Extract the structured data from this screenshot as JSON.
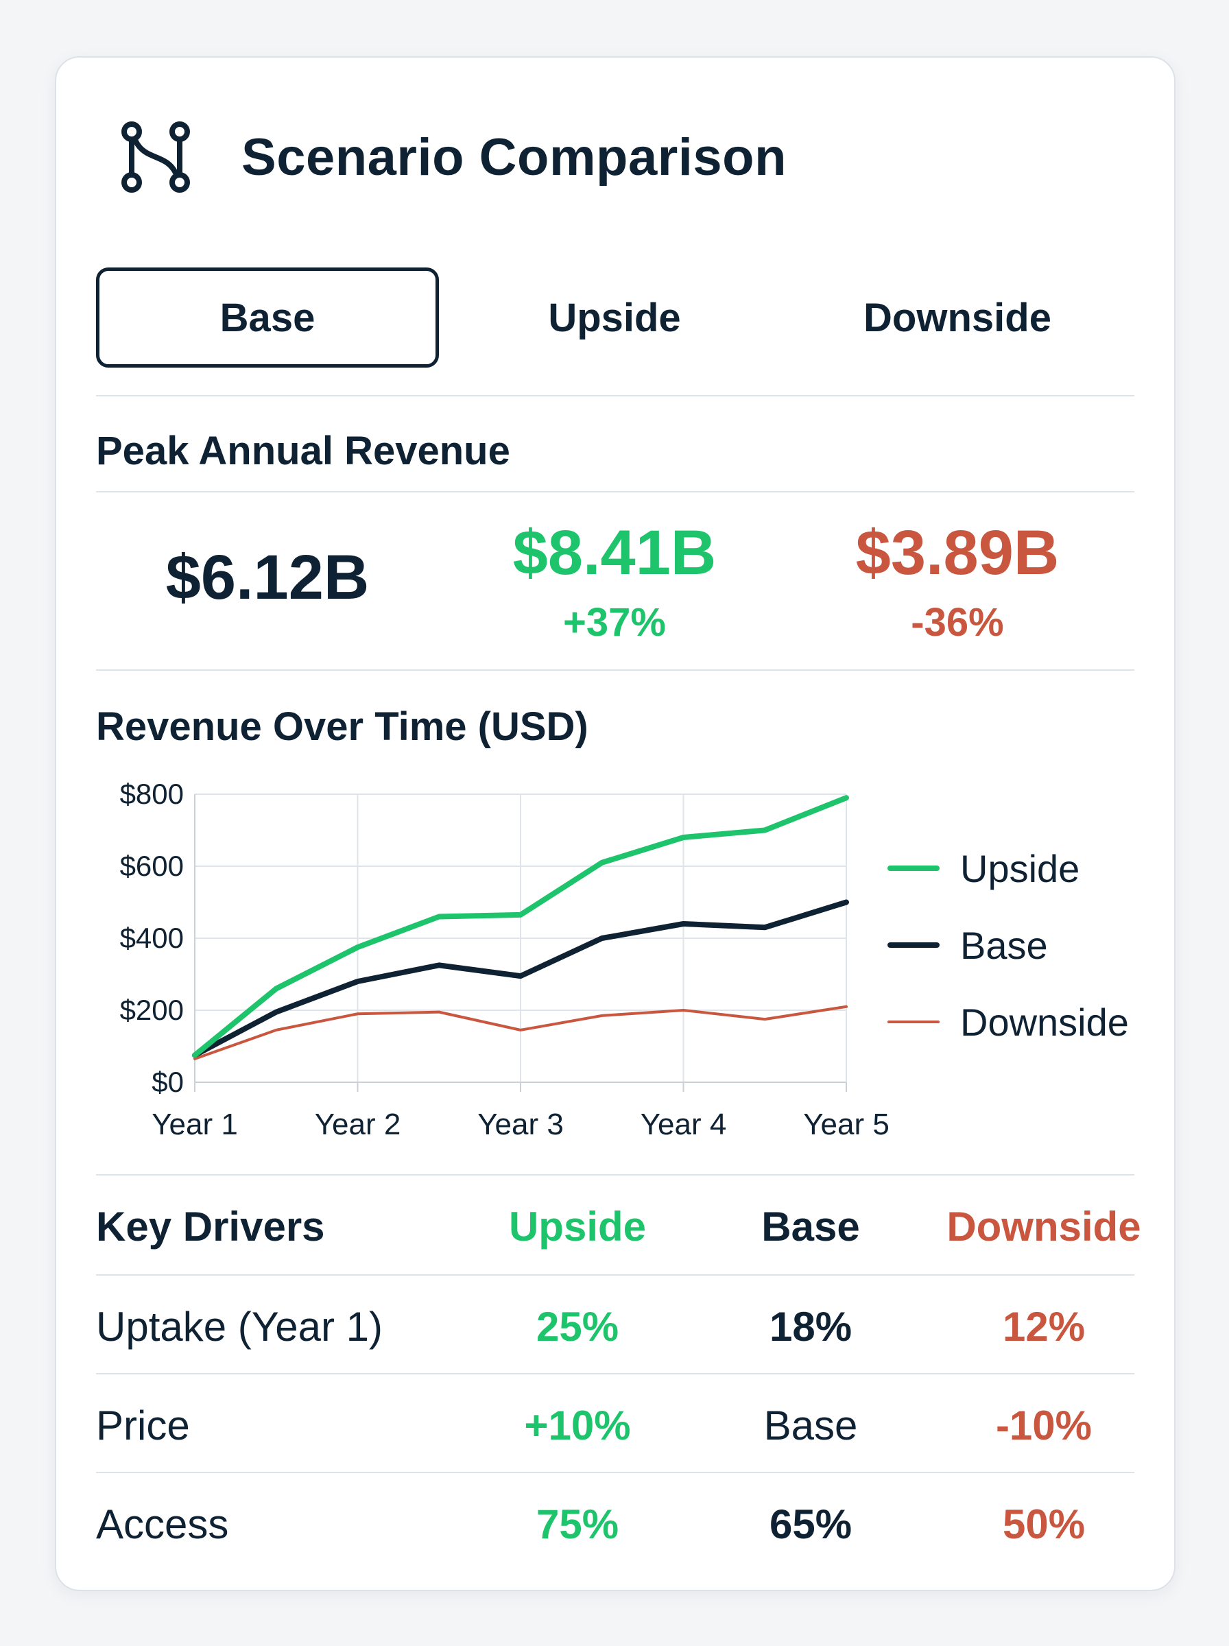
{
  "header": {
    "title": "Scenario Comparison",
    "icon": "git-merge-icon"
  },
  "tabs": [
    {
      "label": "Base",
      "active": true
    },
    {
      "label": "Upside",
      "active": false
    },
    {
      "label": "Downside",
      "active": false
    }
  ],
  "peak": {
    "heading": "Peak Annual Revenue",
    "base": {
      "value": "$6.12B"
    },
    "upside": {
      "value": "$8.41B",
      "change": "+37%"
    },
    "downside": {
      "value": "$3.89B",
      "change": "-36%"
    }
  },
  "colors": {
    "upside": "#1ec46b",
    "base": "#0f2233",
    "downside": "#c9573f",
    "grid": "#dfe4ea"
  },
  "chart": {
    "title": "Revenue Over Time (USD)"
  },
  "chart_data": {
    "type": "line",
    "title": "Revenue Over Time (USD)",
    "x": [
      1,
      1.5,
      2,
      2.5,
      3,
      3.5,
      4,
      4.5,
      5
    ],
    "x_tick_values": [
      1,
      2,
      3,
      4,
      5
    ],
    "x_tick_labels": [
      "Year 1",
      "Year 2",
      "Year 3",
      "Year 4",
      "Year 5"
    ],
    "y_tick_values": [
      0,
      200,
      400,
      600,
      800
    ],
    "y_tick_labels": [
      "$0",
      "$200",
      "$400",
      "$600",
      "$800"
    ],
    "ylim": [
      0,
      800
    ],
    "xlim": [
      1,
      5
    ],
    "grid": true,
    "legend": "right",
    "series": [
      {
        "name": "Upside",
        "key": "upside",
        "values": [
          75,
          260,
          375,
          460,
          465,
          610,
          680,
          700,
          790
        ]
      },
      {
        "name": "Base",
        "key": "base",
        "values": [
          75,
          195,
          280,
          325,
          295,
          400,
          440,
          430,
          500
        ]
      },
      {
        "name": "Downside",
        "key": "downside",
        "values": [
          65,
          145,
          190,
          195,
          145,
          185,
          200,
          175,
          210
        ]
      }
    ]
  },
  "drivers": {
    "heading": "Key Drivers",
    "columns": [
      "Upside",
      "Base",
      "Downside"
    ],
    "rows": [
      {
        "label": "Uptake (Year 1)",
        "upside": "25%",
        "base": "18%",
        "downside": "12%",
        "base_bold": true
      },
      {
        "label": "Price",
        "upside": "+10%",
        "base": "Base",
        "downside": "-10%",
        "base_bold": false
      },
      {
        "label": "Access",
        "upside": "75%",
        "base": "65%",
        "downside": "50%",
        "base_bold": true
      }
    ]
  }
}
